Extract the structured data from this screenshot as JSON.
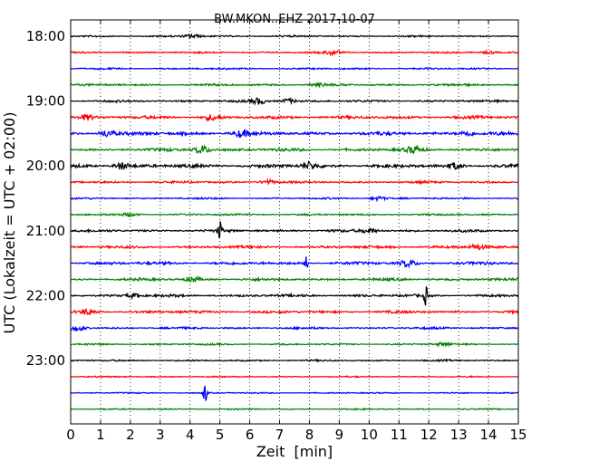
{
  "chart_data": {
    "type": "line",
    "title": "BW.MKON..EHZ 2017-10-07",
    "xlabel": "Zeit  [min]",
    "ylabel": "UTC (Lokalzeit = UTC + 02:00)",
    "xlim": [
      0,
      15
    ],
    "x_ticks": [
      0,
      1,
      2,
      3,
      4,
      5,
      6,
      7,
      8,
      9,
      10,
      11,
      12,
      13,
      14,
      15
    ],
    "x_tick_labels": [
      "0",
      "1",
      "2",
      "3",
      "4",
      "5",
      "6",
      "7",
      "8",
      "9",
      "10",
      "11",
      "12",
      "13",
      "14",
      "15"
    ],
    "y_tick_labels": [
      "18:00",
      "19:00",
      "20:00",
      "21:00",
      "22:00",
      "23:00"
    ],
    "traces_per_hour": 4,
    "grid": "vertical-dotted",
    "colors": [
      "#000000",
      "#ff0000",
      "#0000ff",
      "#008000"
    ],
    "traces": [
      {
        "start": "18:00",
        "amplitude": 0.2,
        "events": [
          {
            "minute": 4.1,
            "amp": 0.35
          }
        ]
      },
      {
        "start": "18:15",
        "amplitude": 0.2,
        "events": [
          {
            "minute": 8.8,
            "amp": 0.35
          },
          {
            "minute": 14.0,
            "amp": 0.25
          }
        ]
      },
      {
        "start": "18:30",
        "amplitude": 0.2,
        "events": []
      },
      {
        "start": "18:45",
        "amplitude": 0.25,
        "events": [
          {
            "minute": 8.3,
            "amp": 0.35
          }
        ]
      },
      {
        "start": "19:00",
        "amplitude": 0.25,
        "events": [
          {
            "minute": 6.3,
            "amp": 0.5
          },
          {
            "minute": 7.3,
            "amp": 0.4
          }
        ]
      },
      {
        "start": "19:15",
        "amplitude": 0.35,
        "events": [
          {
            "minute": 4.7,
            "amp": 0.45
          },
          {
            "minute": 0.5,
            "amp": 0.45
          }
        ]
      },
      {
        "start": "19:30",
        "amplitude": 0.4,
        "events": [
          {
            "minute": 1.2,
            "amp": 0.6
          },
          {
            "minute": 5.7,
            "amp": 0.55
          },
          {
            "minute": 13.3,
            "amp": 0.45
          }
        ]
      },
      {
        "start": "19:45",
        "amplitude": 0.35,
        "events": [
          {
            "minute": 4.4,
            "amp": 0.75
          },
          {
            "minute": 11.5,
            "amp": 0.5
          }
        ]
      },
      {
        "start": "20:00",
        "amplitude": 0.4,
        "events": [
          {
            "minute": 1.7,
            "amp": 0.6
          },
          {
            "minute": 8.0,
            "amp": 0.55
          },
          {
            "minute": 12.9,
            "amp": 0.5
          }
        ]
      },
      {
        "start": "20:15",
        "amplitude": 0.25,
        "events": [
          {
            "minute": 6.6,
            "amp": 0.4
          }
        ]
      },
      {
        "start": "20:30",
        "amplitude": 0.2,
        "events": [
          {
            "minute": 10.3,
            "amp": 0.35
          }
        ]
      },
      {
        "start": "20:45",
        "amplitude": 0.2,
        "events": [
          {
            "minute": 2.0,
            "amp": 0.3
          }
        ]
      },
      {
        "start": "21:00",
        "amplitude": 0.3,
        "events": [
          {
            "minute": 5.0,
            "amp": 1.0
          },
          {
            "minute": 10.0,
            "amp": 0.45
          }
        ]
      },
      {
        "start": "21:15",
        "amplitude": 0.3,
        "events": [
          {
            "minute": 13.6,
            "amp": 0.45
          }
        ]
      },
      {
        "start": "21:30",
        "amplitude": 0.35,
        "events": [
          {
            "minute": 7.9,
            "amp": 1.0
          },
          {
            "minute": 11.3,
            "amp": 0.55
          }
        ]
      },
      {
        "start": "21:45",
        "amplitude": 0.3,
        "events": [
          {
            "minute": 4.1,
            "amp": 0.4
          }
        ]
      },
      {
        "start": "22:00",
        "amplitude": 0.3,
        "events": [
          {
            "minute": 11.9,
            "amp": 0.9
          },
          {
            "minute": 2.1,
            "amp": 0.35
          }
        ]
      },
      {
        "start": "22:15",
        "amplitude": 0.3,
        "events": [
          {
            "minute": 0.6,
            "amp": 0.45
          }
        ]
      },
      {
        "start": "22:30",
        "amplitude": 0.25,
        "events": [
          {
            "minute": 0.2,
            "amp": 0.45
          }
        ]
      },
      {
        "start": "22:45",
        "amplitude": 0.2,
        "events": [
          {
            "minute": 12.5,
            "amp": 0.3
          }
        ]
      },
      {
        "start": "23:00",
        "amplitude": 0.2,
        "events": []
      },
      {
        "start": "23:15",
        "amplitude": 0.15,
        "events": []
      },
      {
        "start": "23:30",
        "amplitude": 0.15,
        "events": [
          {
            "minute": 4.5,
            "amp": 1.0
          }
        ]
      },
      {
        "start": "23:45",
        "amplitude": 0.15,
        "events": []
      }
    ]
  }
}
